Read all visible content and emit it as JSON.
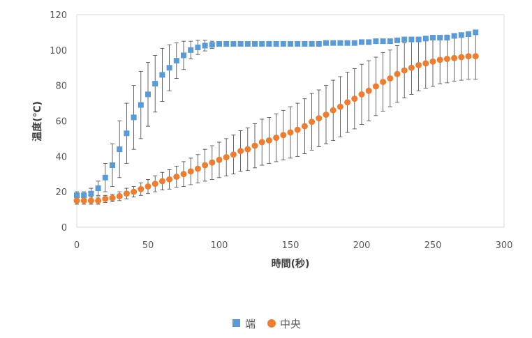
{
  "chart_data": {
    "type": "scatter",
    "xlabel": "時間(秒)",
    "ylabel": "温度(℃)",
    "xlim": [
      0,
      300
    ],
    "ylim": [
      0,
      120
    ],
    "xticks": [
      0,
      50,
      100,
      150,
      200,
      250,
      300
    ],
    "yticks": [
      0,
      20,
      40,
      60,
      80,
      100,
      120
    ],
    "grid": false,
    "legend_position": "bottom",
    "series": [
      {
        "name": "端",
        "color": "#5b9bd5",
        "marker": "square",
        "x": [
          0,
          5,
          10,
          15,
          20,
          25,
          30,
          35,
          40,
          45,
          50,
          55,
          60,
          65,
          70,
          75,
          80,
          85,
          90,
          95,
          100,
          105,
          110,
          115,
          120,
          125,
          130,
          135,
          140,
          145,
          150,
          155,
          160,
          165,
          170,
          175,
          180,
          185,
          190,
          195,
          200,
          205,
          210,
          215,
          220,
          225,
          230,
          235,
          240,
          245,
          250,
          255,
          260,
          265,
          270,
          275,
          280
        ],
        "y": [
          18,
          18,
          19,
          22,
          28,
          35,
          44,
          53,
          62,
          69,
          75,
          81,
          86,
          90,
          94,
          97,
          100,
          101.5,
          102.5,
          103,
          103.5,
          103.5,
          103.5,
          103.5,
          103.5,
          103.5,
          103.5,
          103.5,
          103.5,
          103.5,
          103.5,
          103.5,
          103.5,
          103.5,
          103.5,
          104,
          104,
          104,
          104,
          104,
          104.5,
          104.5,
          105,
          105,
          105,
          105.5,
          106,
          106,
          106,
          106.5,
          107,
          107,
          107,
          108,
          108.5,
          109,
          110
        ],
        "error": [
          2,
          2,
          3,
          4,
          8,
          12,
          16,
          17,
          18,
          19,
          18,
          16,
          15,
          13,
          10,
          8,
          5,
          4,
          3,
          2,
          1,
          1,
          1,
          1,
          1,
          1,
          1,
          1,
          1,
          1,
          1,
          1,
          1,
          1,
          1,
          1,
          1,
          1,
          1,
          1,
          1,
          1,
          1,
          1,
          1,
          1,
          1,
          1,
          1,
          1,
          1,
          1,
          1,
          1,
          1,
          1,
          1
        ]
      },
      {
        "name": "中央",
        "color": "#ed7d31",
        "marker": "circle",
        "x": [
          0,
          5,
          10,
          15,
          20,
          25,
          30,
          35,
          40,
          45,
          50,
          55,
          60,
          65,
          70,
          75,
          80,
          85,
          90,
          95,
          100,
          105,
          110,
          115,
          120,
          125,
          130,
          135,
          140,
          145,
          150,
          155,
          160,
          165,
          170,
          175,
          180,
          185,
          190,
          195,
          200,
          205,
          210,
          215,
          220,
          225,
          230,
          235,
          240,
          245,
          250,
          255,
          260,
          265,
          270,
          275,
          280
        ],
        "y": [
          15,
          15,
          15,
          15,
          16,
          16.5,
          17.5,
          19,
          20,
          21.5,
          23,
          24.5,
          26,
          27,
          28.5,
          30,
          31.5,
          33,
          35,
          36.5,
          38,
          39.5,
          41,
          43,
          44,
          46,
          48,
          49,
          50.5,
          52,
          53.5,
          55,
          57,
          59.5,
          61.5,
          63.5,
          66,
          68,
          70.5,
          72.5,
          75,
          77,
          79.5,
          82,
          84,
          86.5,
          88.5,
          90,
          91.5,
          92.5,
          93.5,
          94.5,
          95,
          95.5,
          96,
          96.5,
          96.5
        ],
        "error": [
          2,
          2,
          2,
          2,
          2,
          2,
          2.5,
          3,
          3,
          3.5,
          4,
          4.5,
          5,
          5.5,
          6,
          7,
          7.5,
          8,
          9,
          9.5,
          10,
          10.5,
          11,
          11.5,
          12,
          12.5,
          13,
          13,
          13.5,
          14,
          14.5,
          15,
          15.5,
          16,
          16,
          16.5,
          17,
          17,
          17,
          17,
          17,
          17,
          16.5,
          16.5,
          16,
          16,
          15.5,
          15,
          14.5,
          14,
          14,
          13.5,
          13.5,
          13,
          13,
          13,
          13
        ]
      }
    ]
  }
}
